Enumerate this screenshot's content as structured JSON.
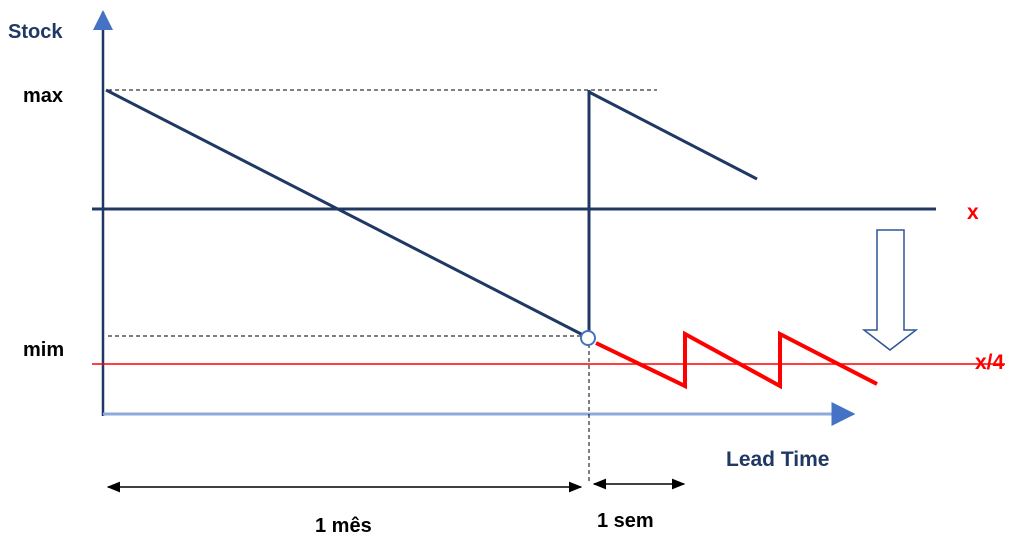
{
  "y_axis_label": "Stock",
  "x_axis_label": "Lead Time",
  "level_max_label": "max",
  "level_min_label": "mim",
  "level_x_label": "x",
  "level_x4_label": "x/4",
  "interval_month_label": "1 mês",
  "interval_week_label": "1 sem",
  "colors": {
    "axis": "#1f3864",
    "stock_line": "#1f3864",
    "reduced_level": "#ff0000",
    "axis_label": "#1f3864",
    "level_label": "#000000",
    "reduced_label": "#ff0000"
  }
}
